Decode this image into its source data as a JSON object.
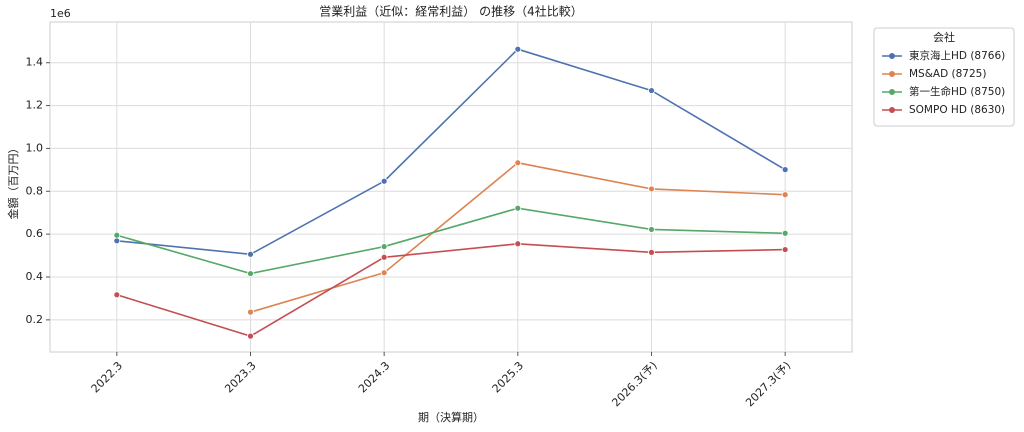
{
  "chart_data": {
    "type": "line",
    "title": "営業利益（近似：経常利益） の推移（4社比較）",
    "x_label": "期（決算期）",
    "y_label": "金額（百万円）",
    "y_offset_label": "1e6",
    "categories": [
      "2022.3",
      "2023.3",
      "2024.3",
      "2025.3",
      "2026.3(予)",
      "2027.3(予)"
    ],
    "series": [
      {
        "name": "東京海上HD (8766)",
        "color": "#4c72b0",
        "values": [
          0.569,
          0.506,
          0.847,
          1.463,
          1.27,
          0.901
        ]
      },
      {
        "name": "MS&AD (8725)",
        "color": "#dd8452",
        "values": [
          null,
          0.236,
          0.42,
          0.933,
          0.811,
          0.784
        ]
      },
      {
        "name": "第一生命HD (8750)",
        "color": "#55a868",
        "values": [
          0.595,
          0.416,
          0.542,
          0.721,
          0.622,
          0.604
        ]
      },
      {
        "name": "SOMPO HD (8630)",
        "color": "#c44e52",
        "values": [
          0.317,
          0.124,
          0.492,
          0.555,
          0.515,
          0.528
        ]
      }
    ],
    "ylim": [
      0.05,
      1.59
    ],
    "yticks": [
      0.2,
      0.4,
      0.6,
      0.8,
      {
        "value": 1.0,
        "label": "1.0"
      },
      1.2,
      1.4
    ],
    "grid": true,
    "legend_title": "会社",
    "legend_position": "outside-upper-right"
  }
}
